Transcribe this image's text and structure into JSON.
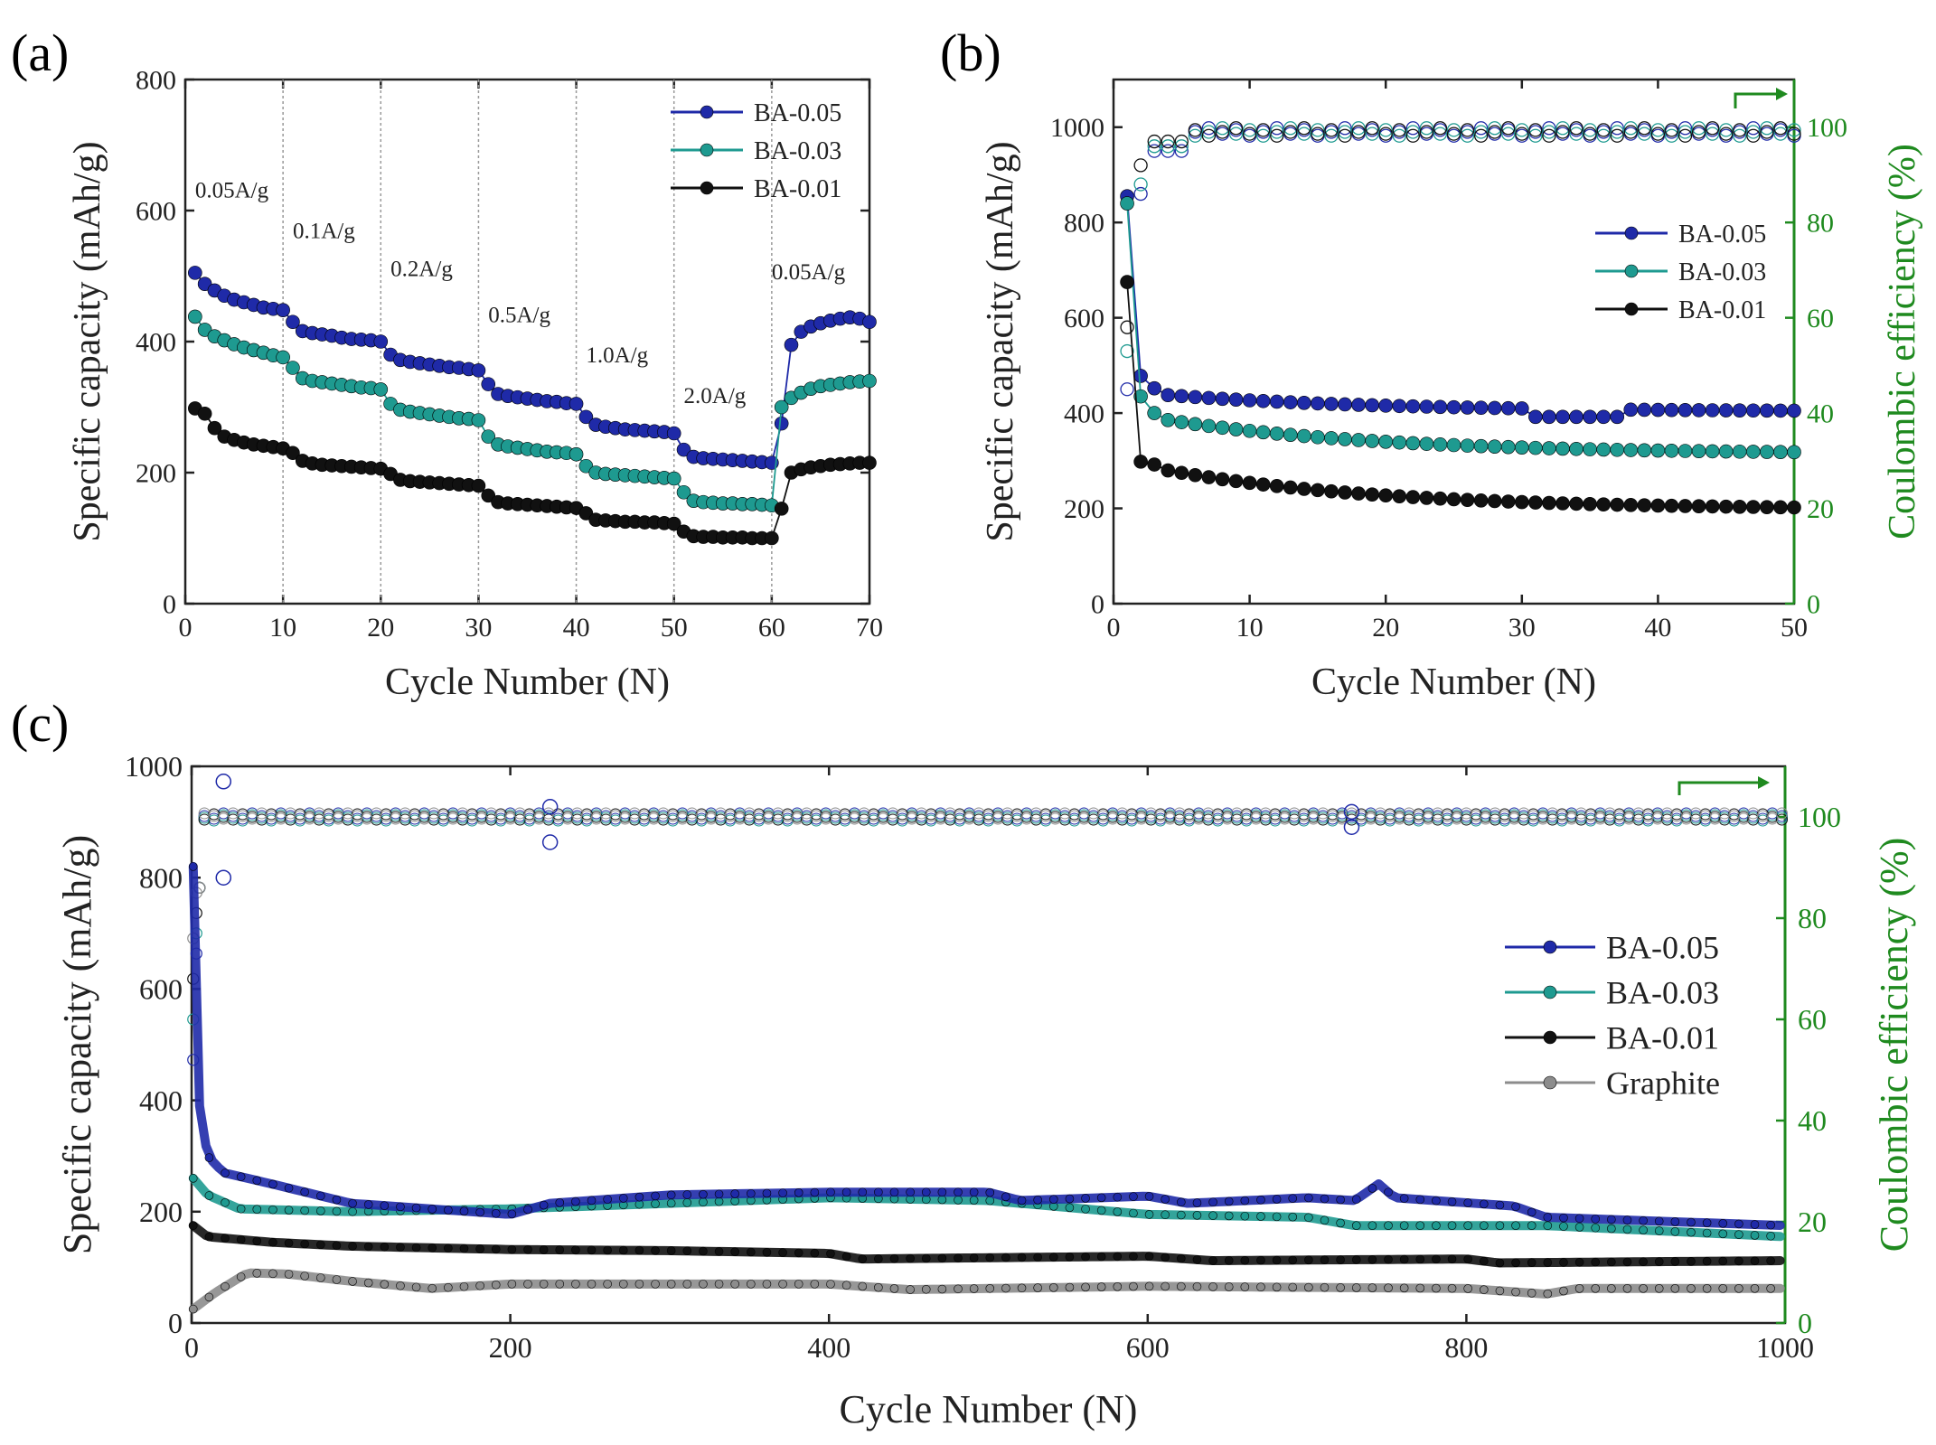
{
  "panel_labels": {
    "a": "(a)",
    "b": "(b)",
    "c": "(c)"
  },
  "colors": {
    "blue": "#1f2aa8",
    "teal": "#1e9a90",
    "black": "#111111",
    "gray": "#8c8c8c",
    "green": "#1f8a1f",
    "axis": "#222222"
  },
  "chart_data": [
    {
      "id": "a",
      "type": "scatter",
      "title": "",
      "xlabel": "Cycle Number (N)",
      "ylabel": "Specific capacity (mAh/g)",
      "xlim": [
        0,
        70
      ],
      "ylim": [
        0,
        800
      ],
      "xticks": [
        0,
        10,
        20,
        30,
        40,
        50,
        60,
        70
      ],
      "yticks": [
        0,
        200,
        400,
        600,
        800
      ],
      "legend_position": "top-right",
      "rate_dividers": [
        10,
        20,
        30,
        40,
        50,
        60
      ],
      "rate_labels": [
        {
          "text": "0.05A/g",
          "x": 1,
          "y": 620
        },
        {
          "text": "0.1A/g",
          "x": 11,
          "y": 558
        },
        {
          "text": "0.2A/g",
          "x": 21,
          "y": 500
        },
        {
          "text": "0.5A/g",
          "x": 31,
          "y": 430
        },
        {
          "text": "1.0A/g",
          "x": 41,
          "y": 368
        },
        {
          "text": "2.0A/g",
          "x": 51,
          "y": 306
        },
        {
          "text": "0.05A/g",
          "x": 60,
          "y": 495
        }
      ],
      "x": [
        1,
        2,
        3,
        4,
        5,
        6,
        7,
        8,
        9,
        10,
        11,
        12,
        13,
        14,
        15,
        16,
        17,
        18,
        19,
        20,
        21,
        22,
        23,
        24,
        25,
        26,
        27,
        28,
        29,
        30,
        31,
        32,
        33,
        34,
        35,
        36,
        37,
        38,
        39,
        40,
        41,
        42,
        43,
        44,
        45,
        46,
        47,
        48,
        49,
        50,
        51,
        52,
        53,
        54,
        55,
        56,
        57,
        58,
        59,
        60,
        61,
        62,
        63,
        64,
        65,
        66,
        67,
        68,
        69,
        70
      ],
      "series": [
        {
          "name": "BA-0.05",
          "color": "#1f2aa8",
          "values": [
            505,
            488,
            478,
            470,
            464,
            460,
            456,
            452,
            450,
            448,
            430,
            416,
            413,
            411,
            409,
            406,
            404,
            403,
            402,
            400,
            380,
            372,
            369,
            367,
            365,
            363,
            361,
            360,
            358,
            356,
            335,
            320,
            317,
            315,
            313,
            311,
            309,
            308,
            306,
            305,
            285,
            273,
            270,
            268,
            266,
            265,
            264,
            263,
            262,
            260,
            235,
            224,
            222,
            221,
            220,
            219,
            218,
            217,
            216,
            215,
            275,
            395,
            415,
            423,
            428,
            432,
            435,
            437,
            435,
            430
          ]
        },
        {
          "name": "BA-0.03",
          "color": "#1e9a90",
          "values": [
            438,
            418,
            408,
            402,
            396,
            391,
            387,
            383,
            379,
            376,
            360,
            344,
            340,
            338,
            336,
            334,
            332,
            330,
            329,
            327,
            305,
            296,
            293,
            291,
            289,
            287,
            285,
            283,
            282,
            280,
            255,
            243,
            240,
            238,
            236,
            234,
            232,
            231,
            230,
            228,
            210,
            200,
            198,
            197,
            196,
            195,
            194,
            193,
            192,
            191,
            170,
            157,
            155,
            154,
            153,
            153,
            152,
            152,
            151,
            150,
            300,
            314,
            322,
            328,
            332,
            334,
            336,
            338,
            339,
            340
          ]
        },
        {
          "name": "BA-0.01",
          "color": "#111111",
          "values": [
            298,
            290,
            268,
            255,
            250,
            246,
            243,
            241,
            239,
            237,
            230,
            218,
            214,
            212,
            211,
            210,
            209,
            208,
            207,
            206,
            198,
            189,
            187,
            186,
            185,
            184,
            183,
            182,
            181,
            180,
            165,
            155,
            153,
            152,
            151,
            150,
            149,
            148,
            147,
            146,
            138,
            128,
            127,
            126,
            125,
            125,
            124,
            124,
            123,
            122,
            110,
            103,
            102,
            102,
            101,
            101,
            101,
            100,
            100,
            100,
            145,
            200,
            205,
            208,
            210,
            212,
            213,
            214,
            215,
            215
          ]
        }
      ]
    },
    {
      "id": "b",
      "type": "scatter",
      "title": "",
      "xlabel": "Cycle Number (N)",
      "ylabel": "Specific capacity (mAh/g)",
      "y2label": "Coulombic efficiency (%)",
      "xlim": [
        0,
        50
      ],
      "ylim": [
        0,
        1100
      ],
      "y2lim": [
        0,
        110
      ],
      "xticks": [
        0,
        10,
        20,
        30,
        40,
        50
      ],
      "yticks": [
        0,
        200,
        400,
        600,
        800,
        1000
      ],
      "y2ticks": [
        0,
        20,
        40,
        60,
        80,
        100
      ],
      "legend_position": "center-right",
      "series": [
        {
          "name": "BA-0.05",
          "color": "#1f2aa8",
          "first": [
            855,
            478,
            452
          ],
          "start": 440,
          "end": 405,
          "dip": 392
        },
        {
          "name": "BA-0.03",
          "color": "#1e9a90",
          "first": [
            840,
            435,
            400
          ],
          "start": 390,
          "end": 318,
          "dip": 318
        },
        {
          "name": "BA-0.01",
          "color": "#111111",
          "first": [
            675,
            298,
            292
          ],
          "start": 285,
          "end": 202,
          "dip": 202
        }
      ],
      "efficiency": {
        "first": [
          45,
          53,
          58
        ],
        "second": [
          86,
          88,
          92
        ],
        "plateau": 99
      }
    },
    {
      "id": "c",
      "type": "scatter",
      "title": "",
      "xlabel": "Cycle Number (N)",
      "ylabel": "Specific capacity (mAh/g)",
      "y2label": "Coulombic efficiency (%)",
      "xlim": [
        0,
        1000
      ],
      "ylim": [
        0,
        1000
      ],
      "y2lim": [
        0,
        110
      ],
      "xticks": [
        0,
        200,
        400,
        600,
        800,
        1000
      ],
      "yticks": [
        0,
        200,
        400,
        600,
        800,
        1000
      ],
      "y2ticks": [
        0,
        20,
        40,
        60,
        80,
        100
      ],
      "legend_position": "center-right",
      "series": [
        {
          "name": "BA-0.05",
          "color": "#1f2aa8",
          "anchors": [
            [
              1,
              820
            ],
            [
              5,
              390
            ],
            [
              10,
              300
            ],
            [
              20,
              270
            ],
            [
              50,
              250
            ],
            [
              100,
              215
            ],
            [
              200,
              195
            ],
            [
              225,
              215
            ],
            [
              300,
              230
            ],
            [
              400,
              235
            ],
            [
              500,
              235
            ],
            [
              520,
              220
            ],
            [
              600,
              228
            ],
            [
              625,
              215
            ],
            [
              700,
              225
            ],
            [
              730,
              220
            ],
            [
              745,
              250
            ],
            [
              755,
              225
            ],
            [
              830,
              210
            ],
            [
              850,
              190
            ],
            [
              1000,
              175
            ]
          ]
        },
        {
          "name": "BA-0.03",
          "color": "#1e9a90",
          "anchors": [
            [
              1,
              260
            ],
            [
              10,
              230
            ],
            [
              30,
              205
            ],
            [
              100,
              200
            ],
            [
              200,
              205
            ],
            [
              300,
              215
            ],
            [
              400,
              225
            ],
            [
              500,
              220
            ],
            [
              600,
              195
            ],
            [
              700,
              190
            ],
            [
              730,
              175
            ],
            [
              850,
              175
            ],
            [
              1000,
              155
            ]
          ]
        },
        {
          "name": "BA-0.01",
          "color": "#111111",
          "anchors": [
            [
              1,
              175
            ],
            [
              10,
              155
            ],
            [
              50,
              145
            ],
            [
              100,
              138
            ],
            [
              200,
              132
            ],
            [
              300,
              130
            ],
            [
              400,
              125
            ],
            [
              420,
              115
            ],
            [
              600,
              120
            ],
            [
              640,
              112
            ],
            [
              800,
              115
            ],
            [
              820,
              108
            ],
            [
              1000,
              112
            ]
          ]
        },
        {
          "name": "Graphite",
          "color": "#8c8c8c",
          "anchors": [
            [
              1,
              25
            ],
            [
              15,
              55
            ],
            [
              35,
              90
            ],
            [
              60,
              88
            ],
            [
              100,
              75
            ],
            [
              150,
              62
            ],
            [
              200,
              70
            ],
            [
              400,
              70
            ],
            [
              450,
              60
            ],
            [
              600,
              66
            ],
            [
              800,
              62
            ],
            [
              850,
              52
            ],
            [
              870,
              62
            ],
            [
              1000,
              62
            ]
          ]
        }
      ],
      "efficiency_plateau": 100
    }
  ]
}
